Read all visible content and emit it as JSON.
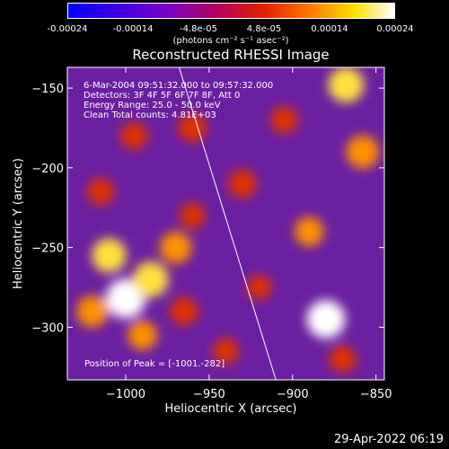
{
  "colorbar": {
    "ticks": [
      "-0.00024",
      "-0.00014",
      "-4.8e-05",
      "4.8e-05",
      "0.00014",
      "0.00024"
    ],
    "unit_label": "(photons cm⁻² s⁻¹ asec⁻²)"
  },
  "footer_timestamp": "29-Apr-2022 06:19",
  "chart_data": {
    "type": "heatmap",
    "title": "Reconstructed RHESSI Image",
    "xlabel": "Heliocentric X (arcsec)",
    "ylabel": "Heliocentric Y (arcsec)",
    "xlim": [
      -1035,
      -845
    ],
    "ylim": [
      -333,
      -137
    ],
    "x_ticks": [
      -1000,
      -950,
      -900,
      -850
    ],
    "y_ticks": [
      -300,
      -250,
      -200,
      -150
    ],
    "x_tick_labels": [
      "−1000",
      "−950",
      "−900",
      "−850"
    ],
    "y_tick_labels": [
      "−300",
      "−250",
      "−200",
      "−150"
    ],
    "annotations": [
      "6-Mar-2004 09:51:32.000 to 09:57:32.000",
      "Detectors: 3F 4F 5F 6F 7F 8F, Att 0",
      "Energy Range: 25.0 - 50.0 keV",
      "Clean     Total counts: 4.81E+03"
    ],
    "peak_label": "Position of Peak = [-1001.-282]",
    "limb_line": [
      [
        -968,
        -137
      ],
      [
        -910,
        -333
      ]
    ],
    "sources": [
      {
        "x": -1000,
        "y": -282,
        "intensity": 1.0
      },
      {
        "x": -985,
        "y": -270,
        "intensity": 0.85
      },
      {
        "x": -1010,
        "y": -255,
        "intensity": 0.8
      },
      {
        "x": -970,
        "y": -250,
        "intensity": 0.7
      },
      {
        "x": -1020,
        "y": -290,
        "intensity": 0.7
      },
      {
        "x": -990,
        "y": -305,
        "intensity": 0.6
      },
      {
        "x": -965,
        "y": -290,
        "intensity": 0.55
      },
      {
        "x": -1015,
        "y": -215,
        "intensity": 0.5
      },
      {
        "x": -960,
        "y": -230,
        "intensity": 0.45
      },
      {
        "x": -880,
        "y": -295,
        "intensity": 0.95
      },
      {
        "x": -868,
        "y": -148,
        "intensity": 0.85
      },
      {
        "x": -858,
        "y": -190,
        "intensity": 0.75
      },
      {
        "x": -890,
        "y": -240,
        "intensity": 0.6
      },
      {
        "x": -930,
        "y": -210,
        "intensity": 0.55
      },
      {
        "x": -905,
        "y": -170,
        "intensity": 0.5
      },
      {
        "x": -960,
        "y": -175,
        "intensity": 0.55
      },
      {
        "x": -995,
        "y": -180,
        "intensity": 0.5
      },
      {
        "x": -870,
        "y": -320,
        "intensity": 0.5
      },
      {
        "x": -920,
        "y": -275,
        "intensity": 0.4
      },
      {
        "x": -940,
        "y": -315,
        "intensity": 0.45
      }
    ]
  }
}
